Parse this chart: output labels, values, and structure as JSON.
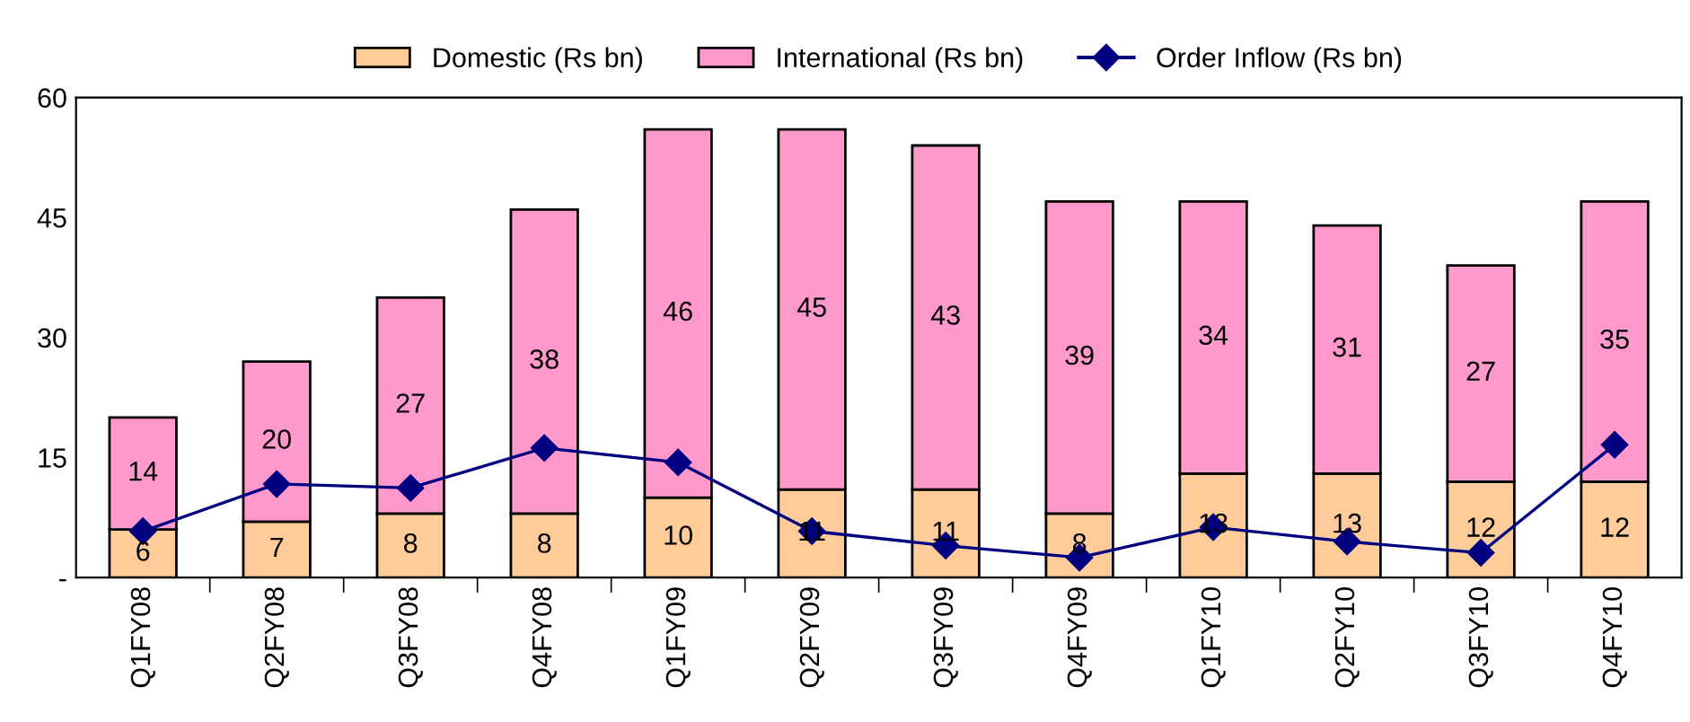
{
  "chart_data": {
    "type": "bar",
    "stacked": true,
    "categories": [
      "Q1FY08",
      "Q2FY08",
      "Q3FY08",
      "Q4FY08",
      "Q1FY09",
      "Q2FY09",
      "Q3FY09",
      "Q4FY09",
      "Q1FY10",
      "Q2FY10",
      "Q3FY10",
      "Q4FY10"
    ],
    "series": [
      {
        "name": "Domestic (Rs bn)",
        "color": "#ffcc99",
        "values": [
          6,
          7,
          8,
          8,
          10,
          11,
          11,
          8,
          13,
          13,
          12,
          12
        ],
        "value_labels": [
          "6",
          "7",
          "8",
          "8",
          "10",
          "11",
          "11",
          "8",
          "13",
          "13",
          "12",
          "12"
        ]
      },
      {
        "name": "International (Rs bn)",
        "color": "#ff99cc",
        "values": [
          14,
          20,
          27,
          38,
          46,
          45,
          43,
          39,
          34,
          31,
          27,
          35
        ],
        "value_labels": [
          "14",
          "20",
          "27",
          "38",
          "46",
          "45",
          "43",
          "39",
          "34",
          "31",
          "27",
          "35"
        ]
      },
      {
        "name": "Order Inflow (Rs bn)",
        "type": "line",
        "color": "#000080",
        "marker": "diamond",
        "values": [
          5.8,
          11.7,
          11.2,
          16.2,
          14.4,
          5.8,
          4.0,
          2.5,
          6.3,
          4.5,
          3.1,
          16.6
        ]
      }
    ],
    "ylim": [
      0,
      60
    ],
    "yticks": [
      {
        "value": 0,
        "label": "-"
      },
      15,
      30,
      45,
      60
    ],
    "grid": false,
    "legend": "top"
  }
}
